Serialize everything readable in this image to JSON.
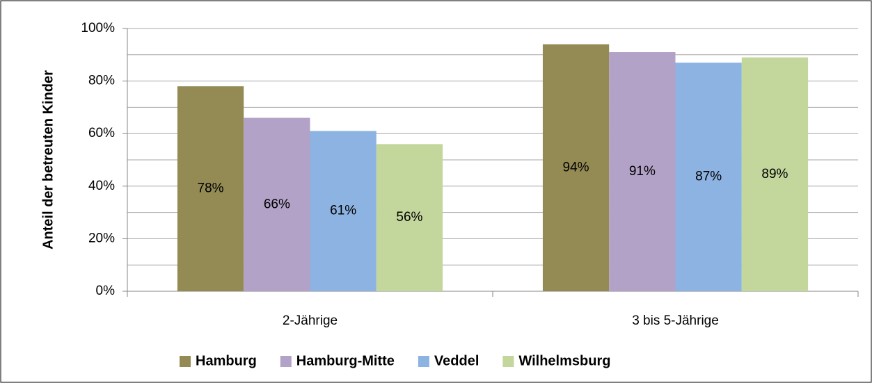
{
  "chart_data": {
    "type": "bar",
    "y_axis_label": "Anteil der betreuten Kinder",
    "categories": [
      "2-Jährige",
      "3 bis 5-Jährige"
    ],
    "series": [
      {
        "name": "Hamburg",
        "color": "#948a54",
        "values": [
          78,
          94
        ],
        "value_labels": [
          "78%",
          "94%"
        ]
      },
      {
        "name": "Hamburg-Mitte",
        "color": "#b2a2c7",
        "values": [
          66,
          91
        ],
        "value_labels": [
          "66%",
          "91%"
        ]
      },
      {
        "name": "Veddel",
        "color": "#8db3e2",
        "values": [
          61,
          87
        ],
        "value_labels": [
          "61%",
          "87%"
        ]
      },
      {
        "name": "Wilhelmsburg",
        "color": "#c3d69b",
        "values": [
          56,
          89
        ],
        "value_labels": [
          "56%",
          "89%"
        ]
      }
    ],
    "ylim": [
      0,
      100
    ],
    "yticks": [
      {
        "value": 0,
        "label": "0%"
      },
      {
        "value": 20,
        "label": "20%"
      },
      {
        "value": 40,
        "label": "40%"
      },
      {
        "value": 60,
        "label": "60%"
      },
      {
        "value": 80,
        "label": "80%"
      },
      {
        "value": 100,
        "label": "100%"
      }
    ],
    "minor_yticks": [
      10,
      30,
      50,
      70,
      90
    ],
    "grid": true,
    "legend": "bottom"
  }
}
